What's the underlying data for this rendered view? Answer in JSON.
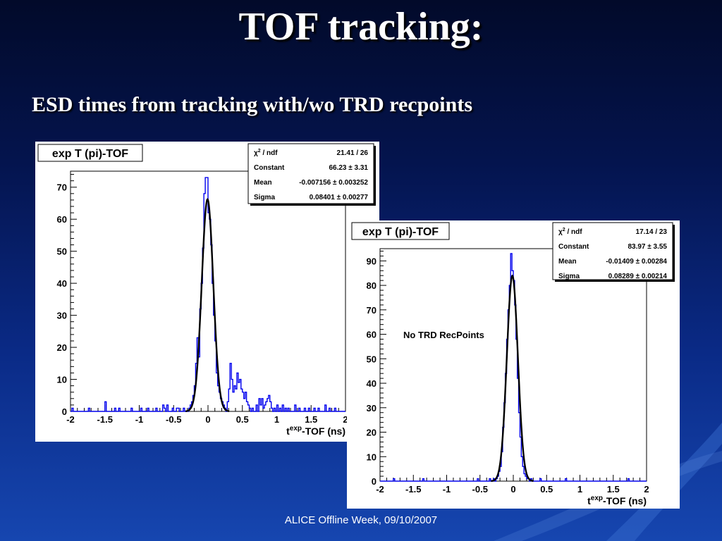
{
  "slide": {
    "title": "TOF tracking:",
    "subtitle": "ESD times from tracking with/wo TRD recpoints",
    "footer": "ALICE Offline Week, 09/10/2007"
  },
  "chart_data": [
    {
      "type": "histogram",
      "title": "exp T (pi)-TOF",
      "xlabel_main": "t",
      "xlabel_sup": "exp",
      "xlabel_rest": "-TOF (ns)",
      "xlim": [
        -2,
        2
      ],
      "ylim": [
        0,
        75
      ],
      "xticks": [
        -2,
        -1.5,
        -1,
        -0.5,
        0,
        0.5,
        1,
        1.5,
        2
      ],
      "xtick_labels": [
        "-2",
        "-1.5",
        "-1",
        "-0.5",
        "0",
        "0.5",
        "1",
        "1.5",
        "2"
      ],
      "yticks": [
        0,
        10,
        20,
        30,
        40,
        50,
        60,
        70
      ],
      "annotation": "",
      "stats": [
        {
          "label_greek": "χ",
          "label_sup": "2",
          "label_rest": " / ndf",
          "value": "21.41 / 26"
        },
        {
          "label": "Constant",
          "value": "66.23 ± 3.31"
        },
        {
          "label": "Mean",
          "value": "-0.007156 ± 0.003252"
        },
        {
          "label": "Sigma",
          "value": "0.08401 ± 0.00277"
        }
      ],
      "fit": {
        "constant": 66.23,
        "mean": -0.007156,
        "sigma": 0.08401
      },
      "bin_width": 0.02,
      "hist": [
        [
          -1.98,
          1
        ],
        [
          -1.74,
          1
        ],
        [
          -1.5,
          3
        ],
        [
          -1.36,
          1
        ],
        [
          -1.3,
          1
        ],
        [
          -1.12,
          1
        ],
        [
          -0.98,
          1
        ],
        [
          -0.88,
          1
        ],
        [
          -0.76,
          1
        ],
        [
          -0.66,
          2
        ],
        [
          -0.64,
          1
        ],
        [
          -0.6,
          2
        ],
        [
          -0.52,
          1
        ],
        [
          -0.46,
          1
        ],
        [
          -0.44,
          1
        ],
        [
          -0.36,
          1
        ],
        [
          -0.28,
          1
        ],
        [
          -0.26,
          2
        ],
        [
          -0.24,
          3
        ],
        [
          -0.22,
          5
        ],
        [
          -0.2,
          8
        ],
        [
          -0.18,
          15
        ],
        [
          -0.16,
          23
        ],
        [
          -0.14,
          17
        ],
        [
          -0.12,
          32
        ],
        [
          -0.1,
          40
        ],
        [
          -0.08,
          51
        ],
        [
          -0.06,
          68
        ],
        [
          -0.04,
          73
        ],
        [
          -0.02,
          73
        ],
        [
          0.0,
          62
        ],
        [
          0.02,
          60
        ],
        [
          0.04,
          52
        ],
        [
          0.06,
          40
        ],
        [
          0.08,
          30
        ],
        [
          0.1,
          22
        ],
        [
          0.12,
          12
        ],
        [
          0.14,
          8
        ],
        [
          0.16,
          6
        ],
        [
          0.18,
          4
        ],
        [
          0.2,
          3
        ],
        [
          0.22,
          2
        ],
        [
          0.24,
          1
        ],
        [
          0.28,
          3
        ],
        [
          0.3,
          7
        ],
        [
          0.32,
          15
        ],
        [
          0.34,
          10
        ],
        [
          0.36,
          6
        ],
        [
          0.38,
          8
        ],
        [
          0.4,
          7
        ],
        [
          0.42,
          12
        ],
        [
          0.44,
          9
        ],
        [
          0.46,
          10
        ],
        [
          0.48,
          7
        ],
        [
          0.5,
          6
        ],
        [
          0.52,
          4
        ],
        [
          0.54,
          6
        ],
        [
          0.56,
          3
        ],
        [
          0.58,
          2
        ],
        [
          0.6,
          1
        ],
        [
          0.64,
          1
        ],
        [
          0.7,
          2
        ],
        [
          0.74,
          4
        ],
        [
          0.76,
          2
        ],
        [
          0.78,
          4
        ],
        [
          0.8,
          1
        ],
        [
          0.82,
          2
        ],
        [
          0.84,
          3
        ],
        [
          0.86,
          4
        ],
        [
          0.88,
          5
        ],
        [
          0.9,
          3
        ],
        [
          0.92,
          1
        ],
        [
          0.96,
          1
        ],
        [
          1.0,
          2
        ],
        [
          1.04,
          1
        ],
        [
          1.08,
          2
        ],
        [
          1.12,
          1
        ],
        [
          1.16,
          1
        ],
        [
          1.26,
          2
        ],
        [
          1.32,
          1
        ],
        [
          1.4,
          1
        ],
        [
          1.46,
          1
        ],
        [
          1.54,
          1
        ],
        [
          1.6,
          1
        ],
        [
          1.7,
          2
        ],
        [
          1.76,
          1
        ],
        [
          1.84,
          1
        ]
      ]
    },
    {
      "type": "histogram",
      "title": "exp T (pi)-TOF",
      "xlabel_main": "t",
      "xlabel_sup": "exp",
      "xlabel_rest": "-TOF (ns)",
      "xlim": [
        -2,
        2
      ],
      "ylim": [
        0,
        95
      ],
      "xticks": [
        -2,
        -1.5,
        -1,
        -0.5,
        0,
        0.5,
        1,
        1.5,
        2
      ],
      "xtick_labels": [
        "-2",
        "-1.5",
        "-1",
        "-0.5",
        "0",
        "0.5",
        "1",
        "1.5",
        "2"
      ],
      "yticks": [
        0,
        10,
        20,
        30,
        40,
        50,
        60,
        70,
        80,
        90
      ],
      "annotation": "No TRD RecPoints",
      "stats": [
        {
          "label_greek": "χ",
          "label_sup": "2",
          "label_rest": " / ndf",
          "value": "17.14 / 23"
        },
        {
          "label": "Constant",
          "value": "83.97 ± 3.55"
        },
        {
          "label": "Mean",
          "value": "-0.01409 ± 0.00284"
        },
        {
          "label": "Sigma",
          "value": "0.08289 ± 0.00214"
        }
      ],
      "fit": {
        "constant": 83.97,
        "mean": -0.01409,
        "sigma": 0.08289
      },
      "bin_width": 0.02,
      "hist": [
        [
          -1.8,
          1
        ],
        [
          -1.36,
          1
        ],
        [
          -0.54,
          1
        ],
        [
          -0.36,
          1
        ],
        [
          -0.3,
          1
        ],
        [
          -0.26,
          1
        ],
        [
          -0.24,
          2
        ],
        [
          -0.22,
          4
        ],
        [
          -0.2,
          6
        ],
        [
          -0.18,
          12
        ],
        [
          -0.16,
          22
        ],
        [
          -0.14,
          32
        ],
        [
          -0.12,
          44
        ],
        [
          -0.1,
          58
        ],
        [
          -0.08,
          70
        ],
        [
          -0.06,
          80
        ],
        [
          -0.04,
          93
        ],
        [
          -0.02,
          86
        ],
        [
          0.0,
          82
        ],
        [
          0.02,
          72
        ],
        [
          0.04,
          58
        ],
        [
          0.06,
          42
        ],
        [
          0.08,
          28
        ],
        [
          0.1,
          18
        ],
        [
          0.12,
          10
        ],
        [
          0.14,
          6
        ],
        [
          0.16,
          3
        ],
        [
          0.18,
          2
        ],
        [
          0.2,
          1
        ],
        [
          0.22,
          1
        ],
        [
          0.26,
          1
        ],
        [
          0.4,
          1
        ],
        [
          0.78,
          1
        ],
        [
          1.72,
          1
        ]
      ]
    }
  ]
}
